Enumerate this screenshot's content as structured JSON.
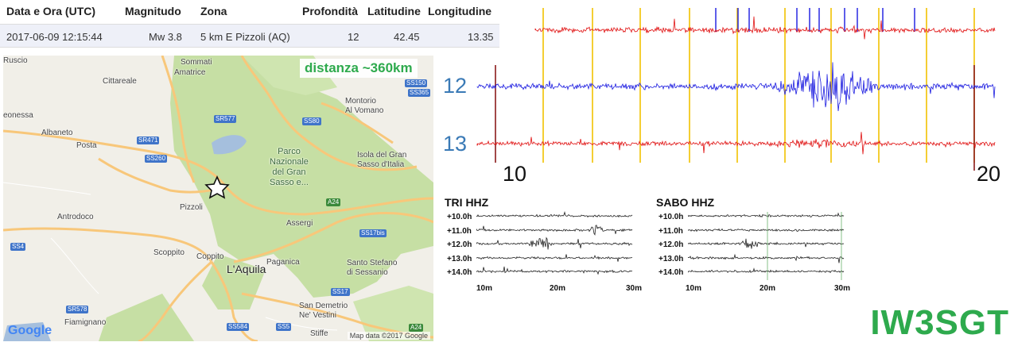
{
  "table": {
    "headers": [
      "Data e Ora (UTC)",
      "Magnitudo",
      "Zona",
      "Profondità",
      "Latitudine",
      "Longitudine"
    ],
    "row": {
      "datetime": "2017-06-09 12:15:44",
      "magnitude": "Mw 3.8",
      "zone": "5 km E Pizzoli (AQ)",
      "depth": "12",
      "lat": "42.45",
      "lon": "13.35"
    }
  },
  "map": {
    "distance_label": "distanza ~360km",
    "places": [
      "Ruscio",
      "Sommati",
      "Amatrice",
      "Cittareale",
      "eonessa",
      "Albaneto",
      "Posta",
      "Montorio\nAl Vomano",
      "Isola del Gran\nSasso d'Italia",
      "Pizzoli",
      "Antrodoco",
      "Scoppito",
      "Coppito",
      "L'Aquila",
      "Assergi",
      "Paganica",
      "Santo Stefano\ndi Sessanio",
      "San Demetrio\nNe' Vestini",
      "Fiamignano",
      "Stiffe"
    ],
    "park": "Parco\nNazionale\ndel Gran\nSasso e...",
    "roads": [
      "SS150",
      "SS365",
      "SR577",
      "SS80",
      "SR471",
      "SS260",
      "A24",
      "SS17bis",
      "SS17",
      "SS4",
      "SR578",
      "SS584",
      "SS5",
      "A24"
    ],
    "google": "Google",
    "attribution": "Map data ©2017 Google",
    "colors": {
      "land": "#f1efe8",
      "park": "#c6dfa4",
      "road": "#f8c77a",
      "water": "#a5bfdd"
    }
  },
  "seismo": {
    "trace_labels": [
      "12",
      "13"
    ],
    "axis_labels": [
      "10",
      "20"
    ],
    "colors": {
      "red": "#e01010",
      "blue": "#1a1ae0",
      "marker": "#f2c200",
      "frame": "#8b1a1a"
    }
  },
  "helicorders": [
    {
      "title": "TRI HHZ",
      "hours": [
        "+10.0h",
        "+11.0h",
        "+12.0h",
        "+13.0h",
        "+14.0h"
      ],
      "xticks": [
        "10m",
        "20m",
        "30m"
      ]
    },
    {
      "title": "SABO HHZ",
      "hours": [
        "+10.0h",
        "+11.0h",
        "+12.0h",
        "+13.0h",
        "+14.0h"
      ],
      "xticks": [
        "10m",
        "20m",
        "30m"
      ]
    }
  ],
  "callsign": "IW3SGT"
}
